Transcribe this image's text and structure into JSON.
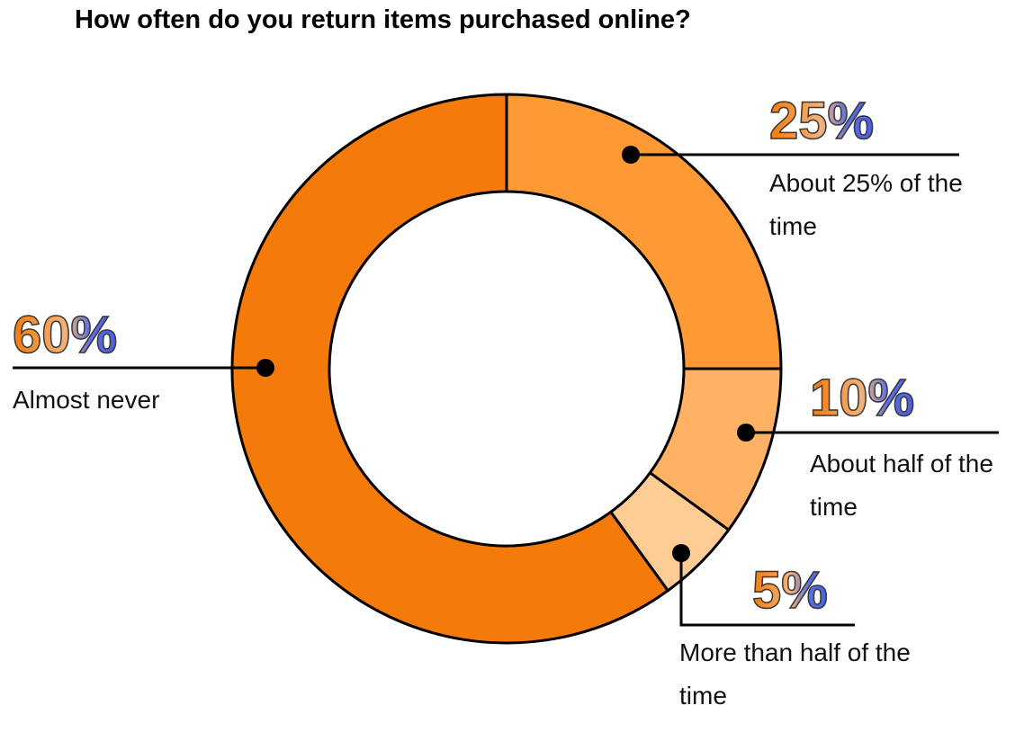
{
  "chart_data": {
    "type": "donut",
    "title": "How often do you return items purchased online?",
    "categories": [
      "About 25% of the time",
      "About half of the time",
      "More than half of the time",
      "Almost never"
    ],
    "values": [
      25,
      10,
      5,
      60
    ],
    "value_labels": [
      "25%",
      "10%",
      "5%",
      "60%"
    ],
    "colors": [
      "#fd9a33",
      "#ffb164",
      "#ffcc96",
      "#f47a0a"
    ]
  }
}
